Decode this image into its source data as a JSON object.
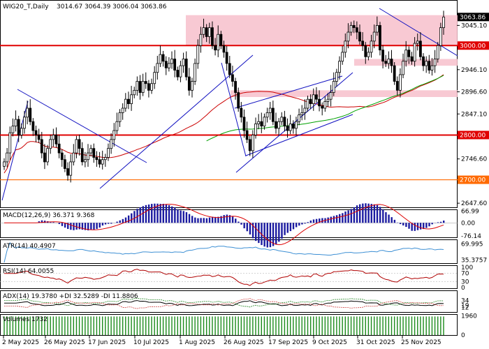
{
  "header": {
    "symbol_text": "WIG20_T,Daily",
    "ohlc_text": "3014.67 3064.39 3006.04 3063.86"
  },
  "colors": {
    "bull": "#000000",
    "bear": "#000000",
    "zone": "#f7c0cb",
    "level_red": "#e00000",
    "level_orange": "#ff6a00",
    "trend_blue": "#1010c0",
    "ma_red": "#cc0000",
    "ma_green": "#00a000",
    "macd_hist": "#1a1aa0",
    "macd_signal": "#dd0000",
    "atr": "#3c8fd4",
    "rsi": "#b00000",
    "current_tag": "#000000"
  },
  "chart_data": [
    {
      "type": "candlestick",
      "title": "WIG20_T,Daily",
      "ohlc": [
        3014.67,
        3064.39,
        3006.04,
        3063.86
      ],
      "x_ticks": [
        "2 May 2025",
        "26 May 2025",
        "17 Jun 2025",
        "10 Jul 2025",
        "1 Aug 2025",
        "26 Aug 2025",
        "17 Sep 2025",
        "9 Oct 2025",
        "31 Oct 2025",
        "25 Nov 2025"
      ],
      "y_ticks": [
        "3063.86",
        "3045.10",
        "3000.00",
        "2946.10",
        "2896.60",
        "2847.10",
        "2800.00",
        "2746.60",
        "2700.00",
        "2647.60"
      ],
      "ylim": [
        2640,
        3080
      ],
      "levels": [
        {
          "value": 3000.0,
          "label": "3000.00",
          "color": "#e00000"
        },
        {
          "value": 2800.0,
          "label": "2800.00",
          "color": "#e00000"
        },
        {
          "value": 2700.0,
          "label": "2700.00",
          "color": "#ff6a00"
        }
      ],
      "current_price": "3063.86",
      "resistance_zones": [
        {
          "from": 3000,
          "to": 3068
        },
        {
          "from": 2955,
          "to": 2970
        },
        {
          "from": 2885,
          "to": 2900
        }
      ],
      "close": [
        2740,
        2760,
        2805,
        2820,
        2835,
        2800,
        2815,
        2840,
        2860,
        2830,
        2810,
        2800,
        2790,
        2760,
        2740,
        2770,
        2790,
        2800,
        2780,
        2760,
        2745,
        2725,
        2710,
        2740,
        2760,
        2790,
        2770,
        2740,
        2745,
        2760,
        2770,
        2750,
        2745,
        2735,
        2745,
        2750,
        2770,
        2790,
        2810,
        2830,
        2850,
        2860,
        2880,
        2870,
        2890,
        2900,
        2920,
        2895,
        2920,
        2915,
        2900,
        2915,
        2940,
        2960,
        2980,
        2965,
        2950,
        2960,
        2970,
        2945,
        2930,
        2955,
        2970,
        2930,
        2900,
        2920,
        2960,
        3000,
        3025,
        3040,
        3020,
        3040,
        3000,
        2990,
        3025,
        3000,
        2985,
        2960,
        2935,
        2920,
        2895,
        2860,
        2840,
        2810,
        2790,
        2765,
        2800,
        2825,
        2830,
        2820,
        2840,
        2850,
        2860,
        2830,
        2815,
        2830,
        2840,
        2820,
        2810,
        2825,
        2815,
        2830,
        2845,
        2850,
        2860,
        2880,
        2870,
        2890,
        2880,
        2865,
        2860,
        2875,
        2880,
        2895,
        2920,
        2940,
        2965,
        2985,
        3010,
        3030,
        3045,
        3040,
        3030,
        3010,
        3000,
        2975,
        2985,
        3010,
        3030,
        3045,
        2990,
        2965,
        2960,
        2970,
        2955,
        2920,
        2900,
        2935,
        2965,
        2990,
        2975,
        2965,
        3005,
        3010,
        2975,
        2955,
        2965,
        2945,
        2955,
        2970,
        3000,
        3040,
        3063.86
      ]
    },
    {
      "type": "bar",
      "title": "MACD(12,26,9)",
      "series_name": "MACD(12,26,9) 36.371 9.368",
      "y_ticks": [
        "66.99",
        "0.00",
        "-76.14"
      ],
      "ylim": [
        -80,
        70
      ]
    },
    {
      "type": "line",
      "title": "ATR(14)",
      "series_name": "ATR(14) 40.4907",
      "y_ticks": [
        "69.995",
        "35.3757"
      ],
      "ylim": [
        30,
        75
      ]
    },
    {
      "type": "line",
      "title": "RSI(14)",
      "series_name": "RSI(14) 64.0055",
      "y_ticks": [
        "100",
        "70",
        "30",
        "0"
      ],
      "ylim": [
        0,
        100
      ]
    },
    {
      "type": "line",
      "title": "ADX(14)",
      "series_name": "ADX(14) 19.3780 +DI 32.5289 -DI 11.8806",
      "y_ticks": [
        "34",
        "19",
        "12"
      ],
      "ylim": [
        0,
        60
      ]
    },
    {
      "type": "bar",
      "title": "Volumes",
      "series_name": "Volumes 1732",
      "y_ticks": [
        "1960",
        "0"
      ],
      "ylim": [
        0,
        2000
      ]
    }
  ]
}
